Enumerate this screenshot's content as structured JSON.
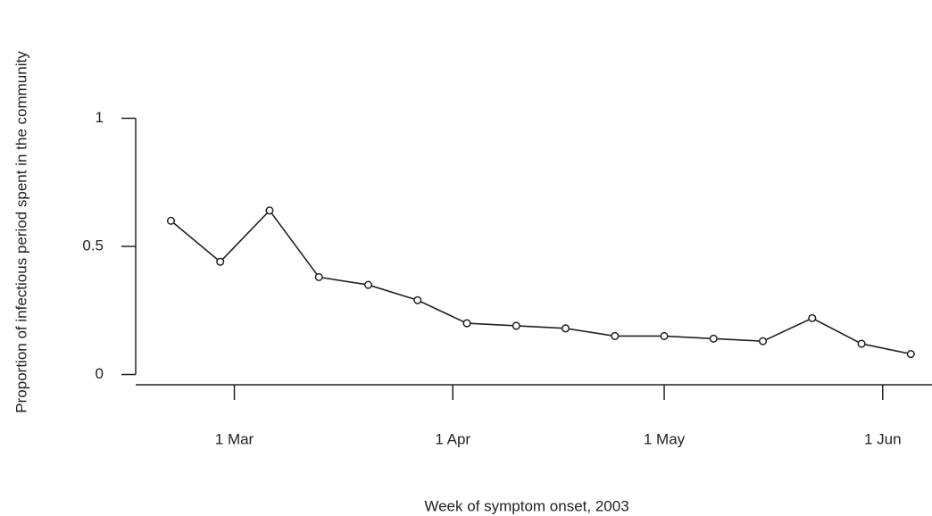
{
  "chart_data": {
    "type": "line",
    "x_label": "Week of symptom onset, 2003",
    "y_label": "Proportion of infectious period spent in the community",
    "x": [
      "2003-02-20",
      "2003-02-27",
      "2003-03-06",
      "2003-03-13",
      "2003-03-20",
      "2003-03-27",
      "2003-04-03",
      "2003-04-10",
      "2003-04-17",
      "2003-04-24",
      "2003-05-01",
      "2003-05-08",
      "2003-05-15",
      "2003-05-22",
      "2003-05-29",
      "2003-06-05"
    ],
    "series": [
      {
        "color": "#222222",
        "values": [
          0.6,
          0.44,
          0.64,
          0.38,
          0.35,
          0.29,
          0.2,
          0.19,
          0.18,
          0.15,
          0.15,
          0.14,
          0.13,
          0.22,
          0.12,
          0.08
        ]
      }
    ],
    "xlim": [
      "2003-02-15",
      "2003-06-08"
    ],
    "xticks": [
      {
        "value": "2003-03-01",
        "label": "1 Mar"
      },
      {
        "value": "2003-04-01",
        "label": "1 Apr"
      },
      {
        "value": "2003-05-01",
        "label": "1 May"
      },
      {
        "value": "2003-06-01",
        "label": "1 Jun"
      }
    ],
    "ylim": [
      -0.04,
      1.04
    ],
    "yticks": [
      0,
      0.5,
      1
    ]
  }
}
